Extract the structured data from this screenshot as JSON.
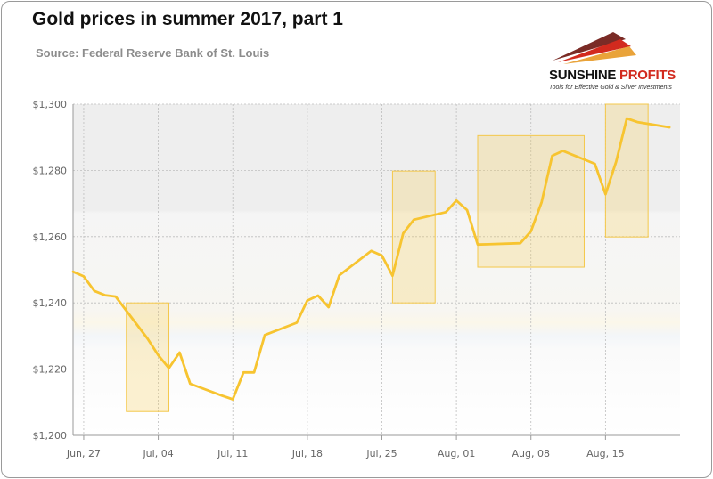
{
  "header": {
    "title": "Gold prices in summer 2017, part 1",
    "subtitle": "Source: Federal Reserve Bank of St. Louis"
  },
  "logo": {
    "name_part1": "SUNSHINE",
    "name_part2": "PROFITS",
    "tagline": "Tools for Effective Gold & Silver Investments",
    "colors": {
      "dark": "#7a2b26",
      "red": "#d22a1e",
      "gold": "#e9a33a"
    }
  },
  "chart_data": {
    "type": "line",
    "title": "Gold prices in summer 2017, part 1",
    "xlabel": "",
    "ylabel": "",
    "ylim": [
      1200,
      1300
    ],
    "yticks": [
      1200,
      1220,
      1240,
      1260,
      1280,
      1300
    ],
    "ytick_labels": [
      "$1,200",
      "$1,220",
      "$1,240",
      "$1,260",
      "$1,280",
      "$1,300"
    ],
    "xlim": [
      "2017-06-26",
      "2017-08-22"
    ],
    "xticks": [
      "2017-06-27",
      "2017-07-04",
      "2017-07-11",
      "2017-07-18",
      "2017-07-25",
      "2017-08-01",
      "2017-08-08",
      "2017-08-15"
    ],
    "xtick_labels": [
      "Jun, 27",
      "Jul, 04",
      "Jul, 11",
      "Jul, 18",
      "Jul, 25",
      "Aug, 01",
      "Aug, 08",
      "Aug, 15"
    ],
    "grid": true,
    "legend": "none",
    "line_color": "#f7c430",
    "series": [
      {
        "x": [
          "2017-06-26",
          "2017-06-27",
          "2017-06-28",
          "2017-06-29",
          "2017-06-30",
          "2017-07-03",
          "2017-07-04",
          "2017-07-05",
          "2017-07-06",
          "2017-07-07",
          "2017-07-10",
          "2017-07-11",
          "2017-07-12",
          "2017-07-13",
          "2017-07-14",
          "2017-07-17",
          "2017-07-18",
          "2017-07-19",
          "2017-07-20",
          "2017-07-21",
          "2017-07-24",
          "2017-07-25",
          "2017-07-26",
          "2017-07-27",
          "2017-07-28",
          "2017-07-31",
          "2017-08-01",
          "2017-08-02",
          "2017-08-03",
          "2017-08-04",
          "2017-08-07",
          "2017-08-08",
          "2017-08-09",
          "2017-08-10",
          "2017-08-11",
          "2017-08-14",
          "2017-08-15",
          "2017-08-16",
          "2017-08-17",
          "2017-08-18",
          "2017-08-21"
        ],
        "values": [
          1249.4,
          1248.0,
          1243.6,
          1242.3,
          1241.9,
          1229.2,
          1224.2,
          1220.3,
          1225.0,
          1215.6,
          1212.0,
          1210.9,
          1219.0,
          1219.0,
          1230.3,
          1234.0,
          1240.7,
          1242.2,
          1238.7,
          1248.3,
          1255.7,
          1254.3,
          1248.2,
          1261.0,
          1265.1,
          1267.4,
          1270.9,
          1268.0,
          1257.6,
          1257.7,
          1258.0,
          1261.6,
          1270.4,
          1284.4,
          1285.9,
          1282.0,
          1272.8,
          1282.6,
          1295.7,
          1294.6,
          1293.0
        ]
      }
    ],
    "highlight_boxes": [
      {
        "x0": "2017-07-01",
        "x1": "2017-07-05",
        "y0": 1207.2,
        "y1": 1240.0
      },
      {
        "x0": "2017-07-26",
        "x1": "2017-07-30",
        "y0": 1240.0,
        "y1": 1279.8
      },
      {
        "x0": "2017-08-03",
        "x1": "2017-08-13",
        "y0": 1250.8,
        "y1": 1290.5
      },
      {
        "x0": "2017-08-15",
        "x1": "2017-08-19",
        "y0": 1259.9,
        "y1": 1300.0
      }
    ]
  }
}
